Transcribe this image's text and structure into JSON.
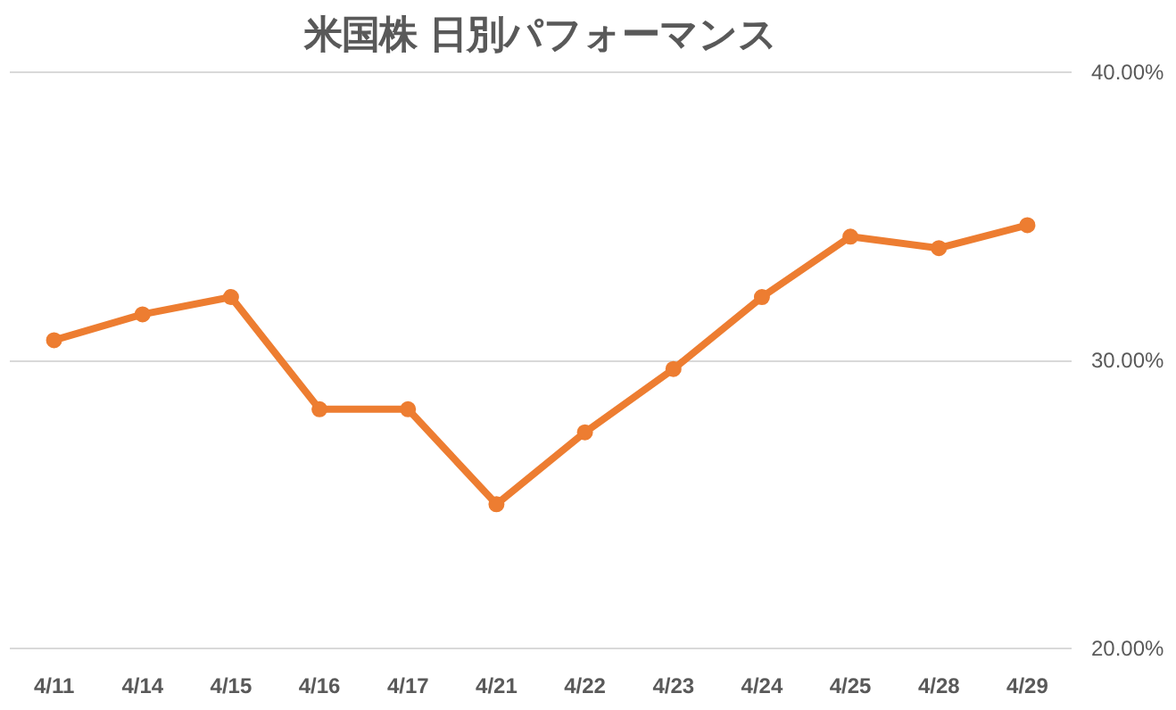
{
  "chart_data": {
    "type": "line",
    "title": "米国株 日別パフォーマンス",
    "categories": [
      "4/11",
      "4/14",
      "4/15",
      "4/16",
      "4/17",
      "4/21",
      "4/22",
      "4/23",
      "4/24",
      "4/25",
      "4/28",
      "4/29"
    ],
    "series": [
      {
        "color": "#ed7d31",
        "values": [
          30.7,
          31.6,
          32.2,
          28.3,
          28.3,
          25.0,
          27.5,
          29.7,
          32.2,
          34.3,
          33.9,
          34.7
        ]
      }
    ],
    "ylim": [
      20,
      40
    ],
    "yticks": [
      {
        "value": 20,
        "label": "20.00%"
      },
      {
        "value": 30,
        "label": "30.00%"
      },
      {
        "value": 40,
        "label": "40.00%"
      }
    ],
    "grid": "y",
    "marker": "circle",
    "line_style": "solid"
  }
}
